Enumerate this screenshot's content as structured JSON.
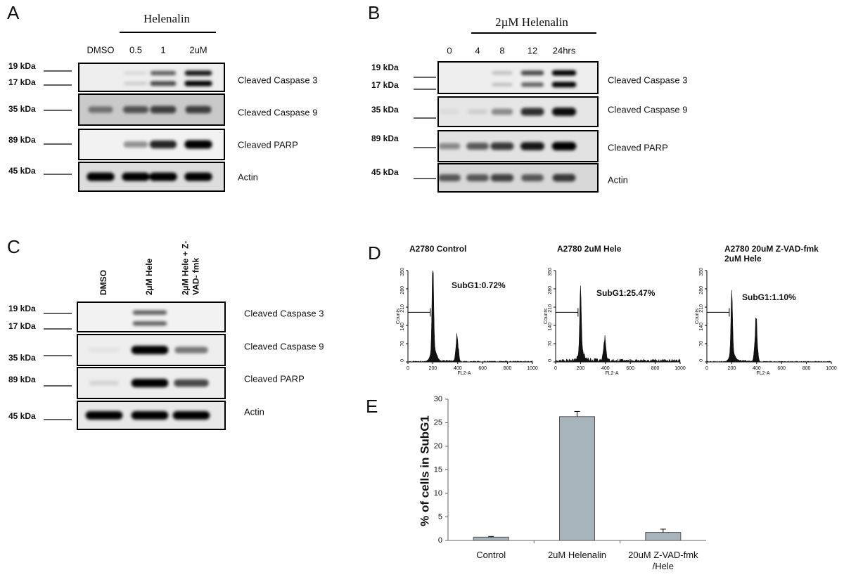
{
  "panels": {
    "A": {
      "label": "A",
      "treatment": "Helenalin",
      "lanes": [
        "DMSO",
        "0.5",
        "1",
        "2uM"
      ],
      "markers": [
        "19 kDa",
        "17 kDa",
        "35 kDa",
        "89 kDa",
        "45 kDa"
      ],
      "proteins": [
        "Cleaved Caspase 3",
        "Cleaved Caspase 9",
        "Cleaved PARP",
        "Actin"
      ]
    },
    "B": {
      "label": "B",
      "treatment": "2µM Helenalin",
      "lanes": [
        "0",
        "4",
        "8",
        "12",
        "24hrs"
      ],
      "markers": [
        "19 kDa",
        "17 kDa",
        "35 kDa",
        "89 kDa",
        "45 kDa"
      ],
      "proteins": [
        "Cleaved Caspase 3",
        "Cleaved Caspase 9",
        "Cleaved PARP",
        "Actin"
      ]
    },
    "C": {
      "label": "C",
      "lanes": [
        [
          "DMSO"
        ],
        [
          "2µM Hele"
        ],
        [
          "2µM Hele + Z-",
          "VAD- fmk"
        ]
      ],
      "markers": [
        "19 kDa",
        "17 kDa",
        "35 kDa",
        "89 kDa",
        "45 kDa"
      ],
      "proteins": [
        "Cleaved Caspase 3",
        "Cleaved Caspase 9",
        "Cleaved PARP",
        "Actin"
      ]
    },
    "D": {
      "label": "D",
      "x_label": "FL2-A",
      "y_label": "Counts",
      "xticks": [
        0,
        200,
        400,
        600,
        800,
        1000
      ],
      "yticks": [
        0,
        70,
        140,
        210,
        280,
        350
      ],
      "plots": [
        {
          "title": [
            "A2780 Control"
          ],
          "subg1": "SubG1:0.72%"
        },
        {
          "title": [
            "A2780 2uM Hele"
          ],
          "subg1": "SubG1:25.47%"
        },
        {
          "title": [
            "A2780 20uM Z-VAD-fmk",
            "2uM Hele"
          ],
          "subg1": "SubG1:1.10%"
        }
      ]
    }
  },
  "chart_data": {
    "type": "bar",
    "label": "E",
    "y_label": "% of cells in SubG1",
    "categories": [
      "Control",
      "2uM Helenalin",
      "20uM Z-VAD-fmk /Hele"
    ],
    "values": [
      0.7,
      26.3,
      1.7
    ],
    "errors": [
      0.15,
      1.1,
      0.7
    ],
    "color": "#a7b4bb",
    "ylim": [
      0,
      30
    ],
    "yticks": [
      0,
      5,
      10,
      15,
      20,
      25,
      30
    ]
  }
}
